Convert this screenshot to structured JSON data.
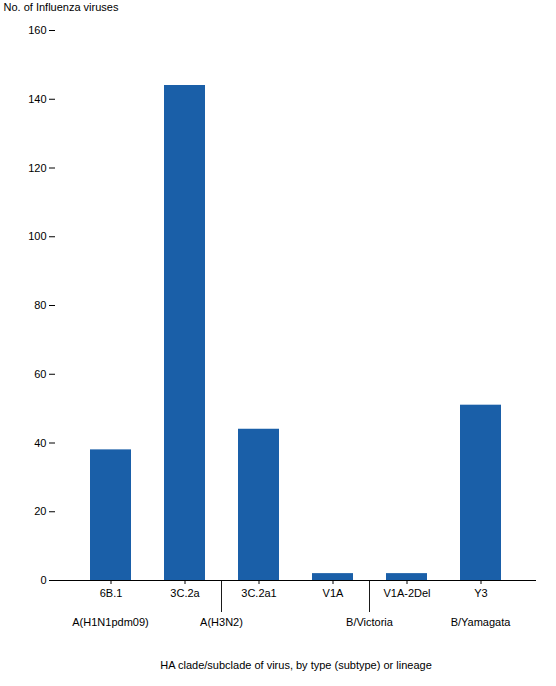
{
  "chart_data": {
    "type": "bar",
    "categories": [
      "6B.1",
      "3C.2a",
      "3C.2a1",
      "V1A",
      "V1A-2Del",
      "Y3"
    ],
    "values": [
      38,
      144,
      44,
      2,
      2,
      51
    ],
    "color": "#1a5fa8",
    "ylim": [
      0,
      160
    ],
    "yticks": [
      0,
      20,
      40,
      60,
      80,
      100,
      120,
      140,
      160
    ],
    "ylabel": "No. of Influenza viruses",
    "xlabel": "HA clade/subclade of virus, by type (subtype) or lineage",
    "groups": [
      {
        "label": "A(H1N1pdm09)",
        "categories": [
          "6B.1"
        ]
      },
      {
        "label": "A(H3N2)",
        "categories": [
          "3C.2a",
          "3C.2a1"
        ]
      },
      {
        "label": "B/Victoria",
        "categories": [
          "V1A",
          "V1A-2Del"
        ]
      },
      {
        "label": "B/Yamagata",
        "categories": [
          "Y3"
        ]
      }
    ],
    "grid": false
  }
}
